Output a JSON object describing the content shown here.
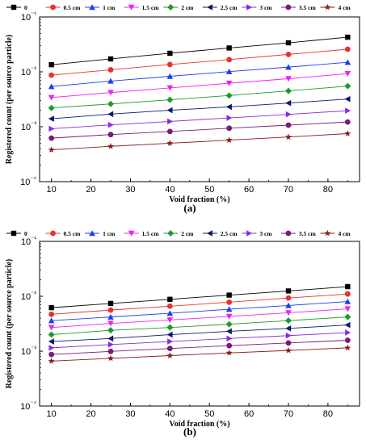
{
  "chart_data": [
    {
      "type": "scatter",
      "panel_label": "(a)",
      "xlabel": "Void fraction (%)",
      "ylabel": "Registered count (per source particle)",
      "yscale": "log",
      "xlim": [
        7,
        88
      ],
      "ylim": [
        0.0001,
        0.1
      ],
      "xticks": [
        "10",
        "20",
        "30",
        "40",
        "50",
        "60",
        "70",
        "80"
      ],
      "yticks": [
        "10⁻⁴",
        "10⁻³",
        "10⁻²",
        "10⁻¹"
      ],
      "x": [
        10,
        25,
        40,
        55,
        70,
        85
      ],
      "legend_position": "top",
      "series": [
        {
          "name": "0",
          "color": "#000000",
          "marker": "square",
          "values": [
            0.0135,
            0.0172,
            0.0218,
            0.0272,
            0.0338,
            0.0428
          ]
        },
        {
          "name": "0.5 cm",
          "color": "#e8312f",
          "marker": "circle",
          "values": [
            0.0087,
            0.0109,
            0.0136,
            0.0167,
            0.0208,
            0.0258
          ]
        },
        {
          "name": "1 cm",
          "color": "#1a3cf5",
          "marker": "triangle-up",
          "values": [
            0.0054,
            0.0068,
            0.0083,
            0.0101,
            0.0122,
            0.0149
          ]
        },
        {
          "name": "1.5 cm",
          "color": "#ee22ee",
          "marker": "triangle-down",
          "values": [
            0.0034,
            0.0042,
            0.0051,
            0.0062,
            0.0075,
            0.0093
          ]
        },
        {
          "name": "2 cm",
          "color": "#1a9a2a",
          "marker": "diamond",
          "values": [
            0.0022,
            0.0026,
            0.0031,
            0.0037,
            0.0045,
            0.0055
          ]
        },
        {
          "name": "2.5 cm",
          "color": "#0a1a6e",
          "marker": "triangle-left",
          "values": [
            0.0014,
            0.0017,
            0.002,
            0.0023,
            0.0027,
            0.0032
          ]
        },
        {
          "name": "3 cm",
          "color": "#8a2be2",
          "marker": "triangle-right",
          "values": [
            0.00092,
            0.00108,
            0.00125,
            0.00145,
            0.00168,
            0.00196
          ]
        },
        {
          "name": "3.5 cm",
          "color": "#7a1a7a",
          "marker": "circle",
          "values": [
            0.00062,
            0.00072,
            0.00082,
            0.00094,
            0.00107,
            0.00122
          ]
        },
        {
          "name": "4 cm",
          "color": "#8b1a1a",
          "marker": "star",
          "values": [
            0.00038,
            0.00044,
            0.0005,
            0.00057,
            0.00065,
            0.00075
          ]
        }
      ]
    },
    {
      "type": "scatter",
      "panel_label": "(b)",
      "xlabel": "Void fraction (%)",
      "ylabel": "Registered count (per source particle)",
      "yscale": "log",
      "xlim": [
        7,
        88
      ],
      "ylim": [
        0.0001,
        0.1
      ],
      "xticks": [
        "10",
        "20",
        "30",
        "40",
        "50",
        "60",
        "70",
        "80"
      ],
      "yticks": [
        "10⁻⁴",
        "10⁻³",
        "10⁻²",
        "10⁻¹"
      ],
      "x": [
        10,
        25,
        40,
        55,
        70,
        85
      ],
      "legend_position": "top",
      "series": [
        {
          "name": "0",
          "color": "#000000",
          "marker": "square",
          "values": [
            0.0062,
            0.0074,
            0.0088,
            0.0105,
            0.0125,
            0.015
          ]
        },
        {
          "name": "0.5 cm",
          "color": "#e8312f",
          "marker": "circle",
          "values": [
            0.0047,
            0.0056,
            0.0066,
            0.0078,
            0.0093,
            0.011
          ]
        },
        {
          "name": "1 cm",
          "color": "#1a3cf5",
          "marker": "triangle-up",
          "values": [
            0.0036,
            0.0042,
            0.0049,
            0.0058,
            0.0068,
            0.008
          ]
        },
        {
          "name": "1.5 cm",
          "color": "#ee22ee",
          "marker": "triangle-down",
          "values": [
            0.0027,
            0.0032,
            0.0037,
            0.0043,
            0.005,
            0.0059
          ]
        },
        {
          "name": "2 cm",
          "color": "#1a9a2a",
          "marker": "diamond",
          "values": [
            0.002,
            0.0024,
            0.0027,
            0.0031,
            0.0036,
            0.0042
          ]
        },
        {
          "name": "2.5 cm",
          "color": "#0a1a6e",
          "marker": "triangle-left",
          "values": [
            0.0015,
            0.0017,
            0.002,
            0.0023,
            0.0026,
            0.003
          ]
        },
        {
          "name": "3 cm",
          "color": "#8a2be2",
          "marker": "triangle-right",
          "values": [
            0.00115,
            0.00132,
            0.0015,
            0.0017,
            0.00192,
            0.00218
          ]
        },
        {
          "name": "3.5 cm",
          "color": "#7a1a7a",
          "marker": "circle",
          "values": [
            0.00087,
            0.00099,
            0.00112,
            0.00126,
            0.00141,
            0.00158
          ]
        },
        {
          "name": "4 cm",
          "color": "#8b1a1a",
          "marker": "star",
          "values": [
            0.00066,
            0.00074,
            0.00083,
            0.00093,
            0.00103,
            0.00115
          ]
        }
      ]
    }
  ]
}
